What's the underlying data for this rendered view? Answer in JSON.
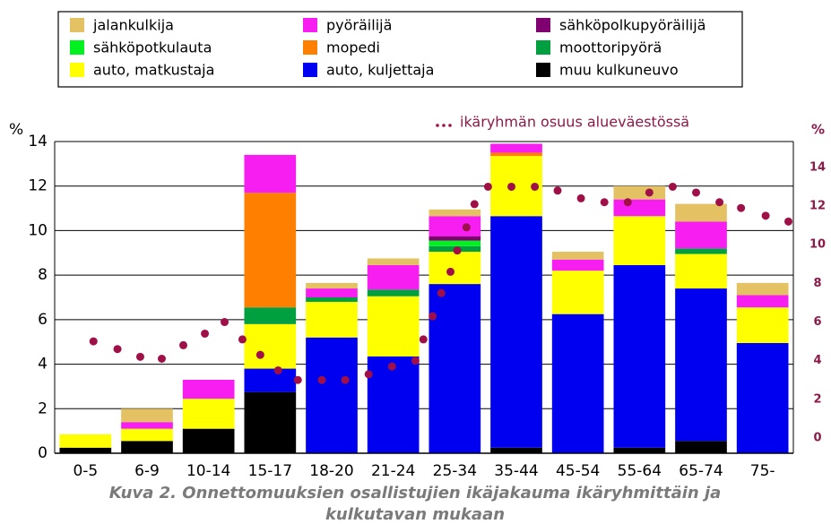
{
  "chart_data": {
    "type": "stacked_bar",
    "categories": [
      "0-5",
      "6-9",
      "10-14",
      "15-17",
      "18-20",
      "21-24",
      "25-34",
      "35-44",
      "45-54",
      "55-64",
      "65-74",
      "75-"
    ],
    "series": [
      {
        "name": "jalankulkija",
        "color": "#e4c263",
        "values": [
          0,
          0.6,
          0,
          0,
          0.25,
          0.3,
          0.3,
          0,
          0.35,
          0.6,
          0.8,
          0.55
        ]
      },
      {
        "name": "pyöräilijä",
        "color": "#f61ef0",
        "values": [
          0,
          0.3,
          0.85,
          1.7,
          0.4,
          1.1,
          0.9,
          0.4,
          0.5,
          0.75,
          1.2,
          0.55
        ]
      },
      {
        "name": "sähköpolkupyöräilijä",
        "color": "#800070",
        "values": [
          0,
          0,
          0,
          0,
          0,
          0,
          0.2,
          0,
          0,
          0,
          0,
          0
        ]
      },
      {
        "name": "sähköpotkulauta",
        "color": "#00f020",
        "values": [
          0,
          0,
          0,
          0,
          0,
          0,
          0.25,
          0,
          0,
          0,
          0,
          0
        ]
      },
      {
        "name": "mopedi",
        "color": "#ff8000",
        "values": [
          0,
          0,
          0,
          5.15,
          0,
          0,
          0,
          0.15,
          0,
          0,
          0,
          0
        ]
      },
      {
        "name": "moottoripyörä",
        "color": "#00a040",
        "values": [
          0,
          0,
          0,
          0.75,
          0.2,
          0.3,
          0.25,
          0,
          0,
          0,
          0.25,
          0
        ]
      },
      {
        "name": "auto, matkustaja",
        "color": "#ffff00",
        "values": [
          0.6,
          0.55,
          1.35,
          2.0,
          1.6,
          2.7,
          1.45,
          2.7,
          1.95,
          2.2,
          1.55,
          1.6
        ]
      },
      {
        "name": "auto, kuljettaja",
        "color": "#0000f0",
        "values": [
          0,
          0,
          0,
          1.05,
          5.2,
          4.35,
          7.6,
          10.4,
          6.25,
          8.2,
          6.85,
          4.95
        ]
      },
      {
        "name": "muu kulkuneuvo",
        "color": "#000000",
        "values": [
          0.25,
          0.55,
          1.1,
          2.75,
          0,
          0,
          0,
          0.25,
          0,
          0.25,
          0.55,
          0
        ]
      }
    ],
    "dots": {
      "name": "ikäryhmän osuus alueväestössä",
      "color": "#a01048",
      "axis": "y2",
      "xlim": [
        -0.5,
        11.5
      ],
      "x": [
        0.13,
        0.52,
        0.89,
        1.24,
        1.59,
        1.94,
        2.26,
        2.55,
        2.84,
        3.13,
        3.45,
        3.84,
        4.22,
        4.6,
        4.98,
        5.36,
        5.49,
        5.64,
        5.78,
        5.93,
        6.04,
        6.19,
        6.32,
        6.54,
        6.92,
        7.3,
        7.67,
        8.05,
        8.43,
        8.81,
        9.16,
        9.54,
        9.92,
        10.3,
        10.65,
        11.05,
        11.42
      ],
      "values": [
        5.0,
        4.6,
        4.2,
        4.1,
        4.8,
        5.4,
        6.0,
        5.1,
        4.3,
        3.5,
        3.0,
        3.0,
        3.0,
        3.3,
        3.7,
        4.0,
        5.1,
        6.3,
        7.5,
        8.6,
        9.7,
        10.9,
        12.1,
        13.0,
        13.0,
        13.0,
        12.8,
        12.4,
        12.2,
        12.2,
        12.7,
        13.0,
        12.7,
        12.2,
        11.9,
        11.5,
        11.2
      ]
    },
    "ylabel": "%",
    "y2label": "%",
    "ylim": [
      0,
      14
    ],
    "yticks": [
      0,
      2,
      4,
      6,
      8,
      10,
      12,
      14
    ],
    "y2lim": [
      -0.79,
      15.34
    ],
    "y2ticks": [
      0,
      2,
      4,
      6,
      8,
      10,
      12,
      14
    ],
    "grid": true,
    "caption": [
      "Kuva 2. Onnettomuuksien osallistujien ikäjakauma ikäryhmittäin ja",
      "kulkutavan mukaan"
    ]
  }
}
